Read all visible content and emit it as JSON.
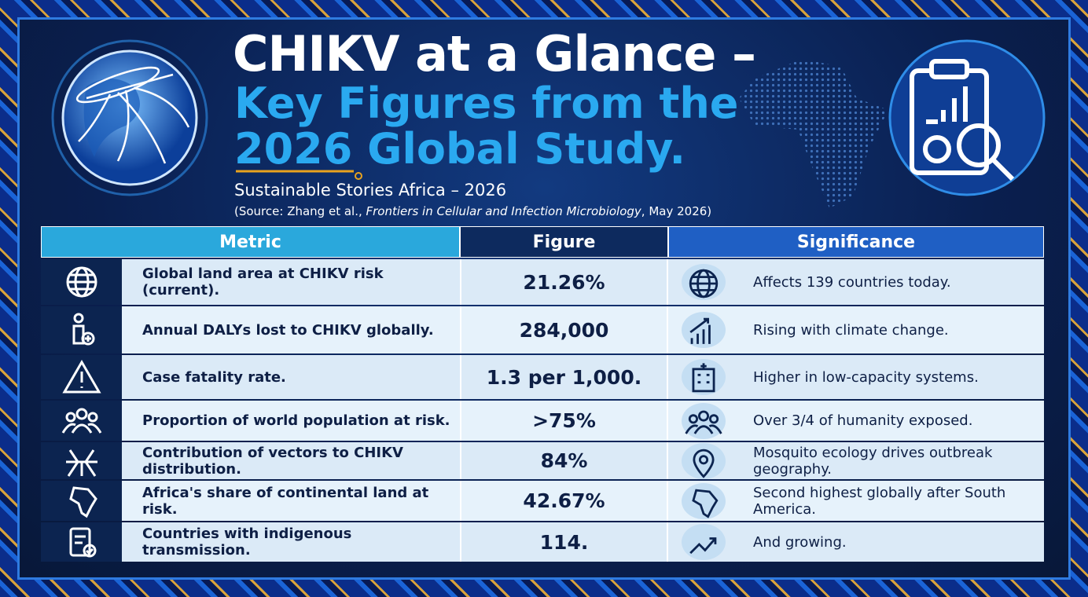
{
  "header": {
    "title_line1": "CHIKV at a Glance –",
    "title_line2": "Key Figures from the",
    "title_line3": "2026 Global Study.",
    "subtitle": "Sustainable Stories Africa – 2026",
    "source": {
      "prefix": "(Source: Zhang et al., ",
      "journal": "Frontiers in Cellular and Infection Microbiology",
      "suffix": ", May 2026)"
    }
  },
  "table": {
    "columns": [
      "Metric",
      "Figure",
      "Significance"
    ],
    "rows": [
      [
        "Global land area at CHIKV risk (current).",
        "21.26%",
        "Affects 139 countries today."
      ],
      [
        "Annual DALYs lost to CHIKV globally.",
        "284,000",
        "Rising with climate change."
      ],
      [
        "Case fatality rate.",
        "1.3 per 1,000.",
        "Higher in low-capacity systems."
      ],
      [
        "Proportion of world population at risk.",
        ">75%",
        "Over 3/4 of humanity exposed."
      ],
      [
        "Contribution of vectors to CHIKV distribution.",
        "84%",
        "Mosquito ecology drives outbreak geography."
      ],
      [
        "Africa's share of continental land at risk.",
        "42.67%",
        "Second highest globally after South America."
      ],
      [
        "Countries with indigenous transmission.",
        "114.",
        "And growing."
      ]
    ]
  }
}
